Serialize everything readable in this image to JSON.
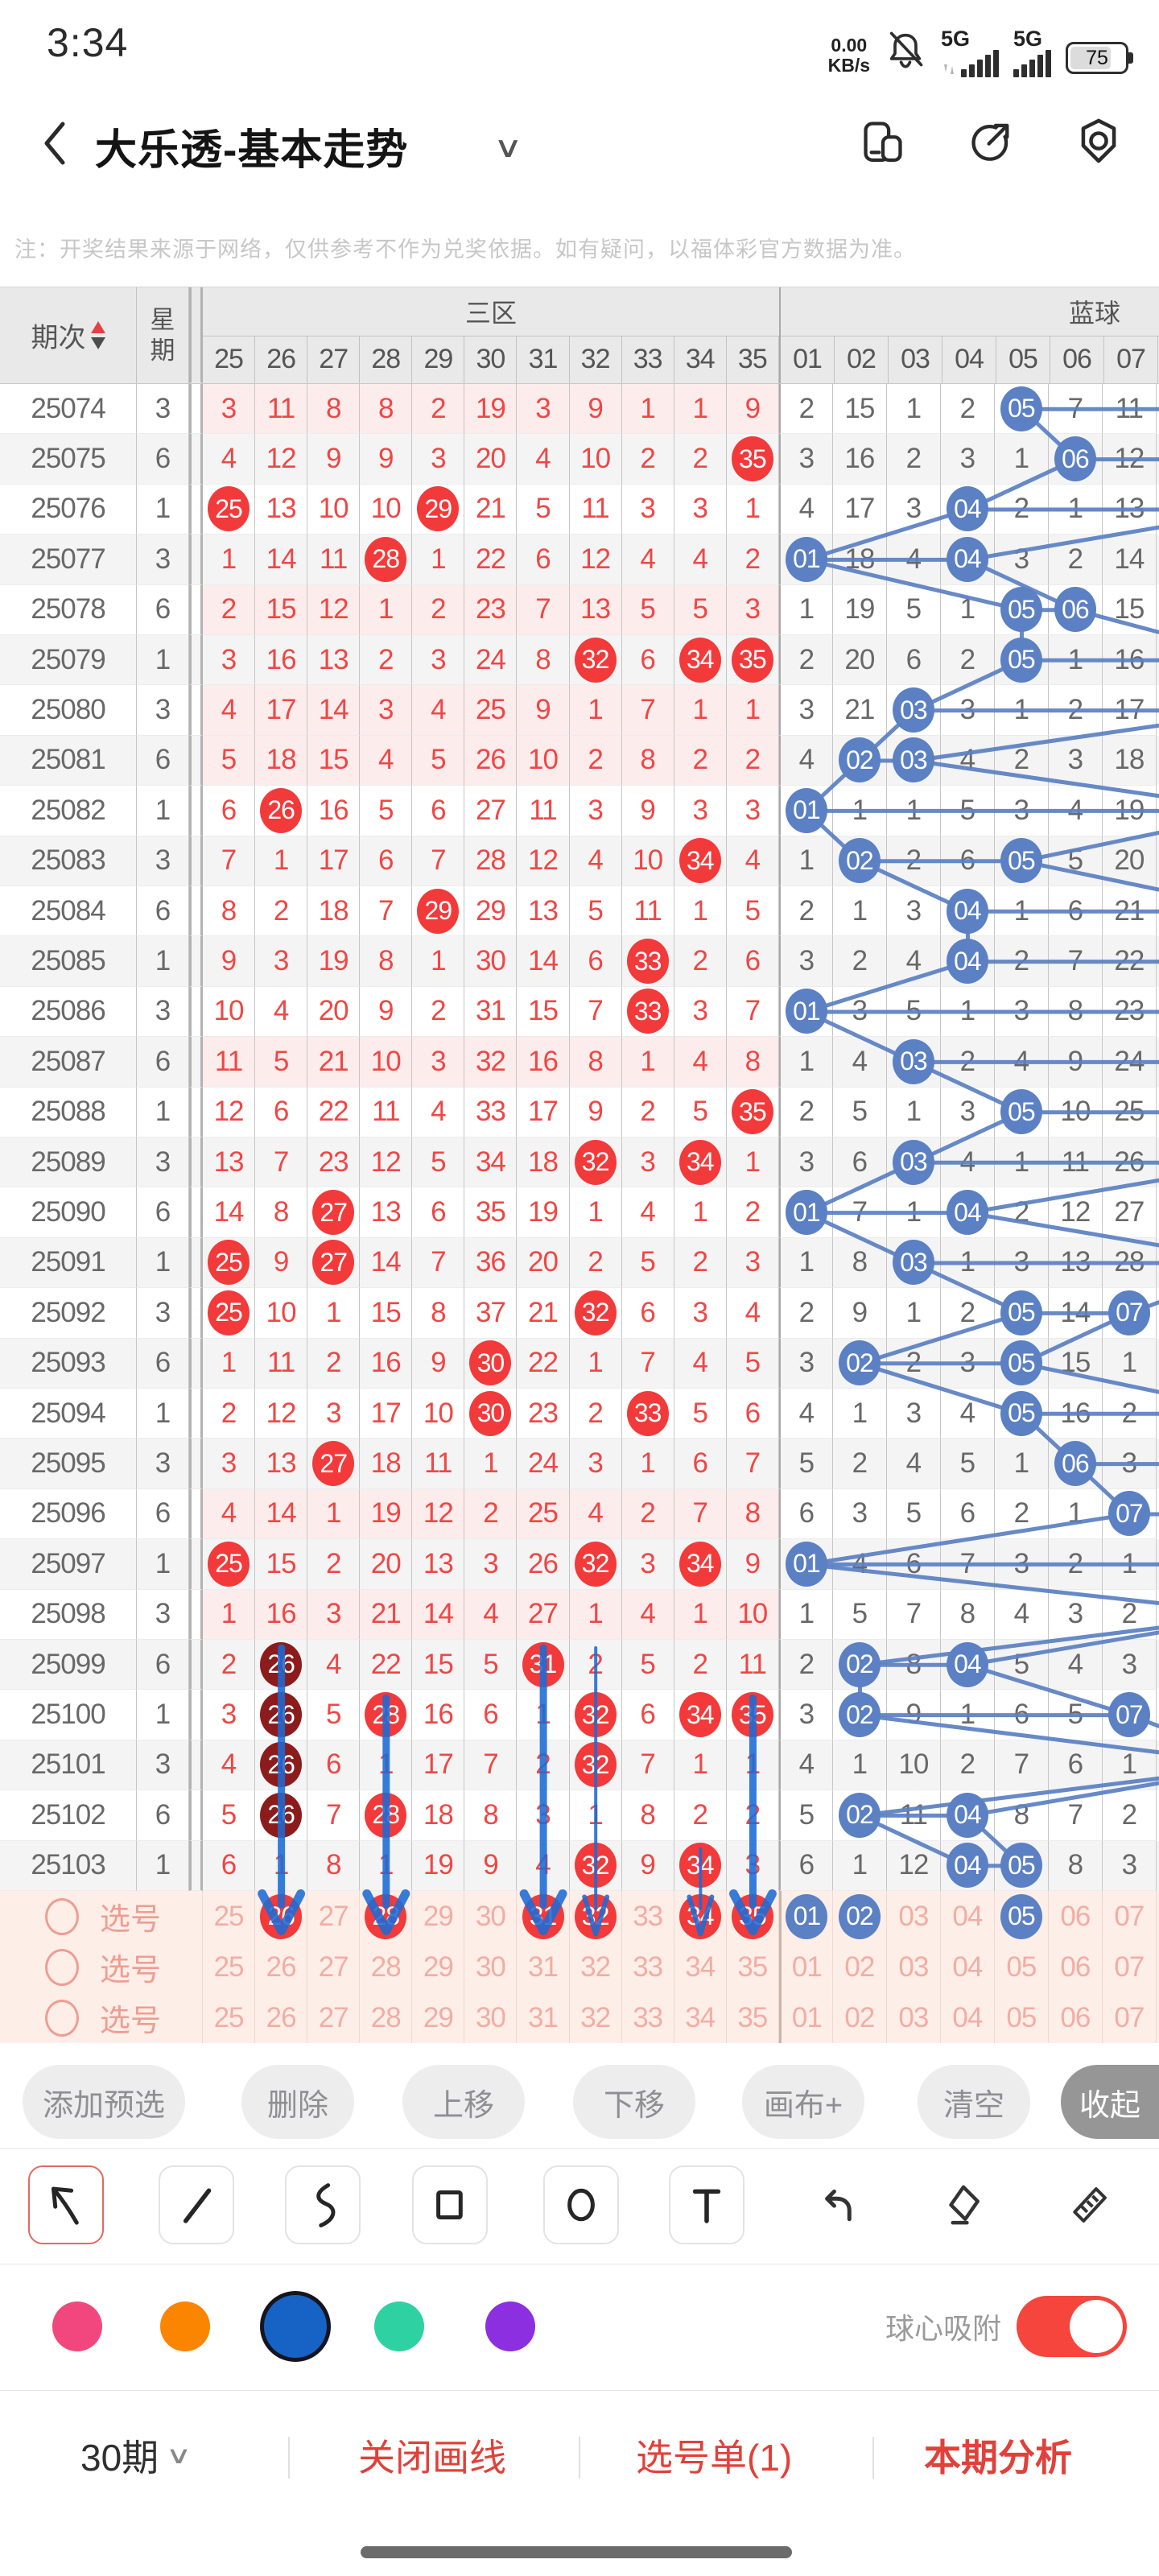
{
  "status_bar": {
    "time": "3:34",
    "net_speed_value": "0.00",
    "net_speed_unit": "KB/s",
    "signal1_label": "5G",
    "signal2_label": "5G",
    "battery_percent": "75",
    "icons": [
      "mute-bell-icon",
      "signal-bars-icon",
      "signal-bars-icon",
      "battery-icon"
    ]
  },
  "nav": {
    "title": "大乐透-基本走势",
    "icons": [
      "back-chevron-icon",
      "chevron-down-icon",
      "floating-window-icon",
      "share-icon",
      "privacy-shield-icon"
    ]
  },
  "notice": {
    "text": "注：开奖结果来源于网络，仅供参考不作为兑奖依据。如有疑问，以福体彩官方数据为准。"
  },
  "table": {
    "period_label": "期次",
    "week_chars": [
      "星",
      "期"
    ],
    "zone3_label": "三区",
    "blue_zone_label": "蓝球",
    "red_headers": [
      "25",
      "26",
      "27",
      "28",
      "29",
      "30",
      "31",
      "32",
      "33",
      "34",
      "35"
    ],
    "blue_headers": [
      "01",
      "02",
      "03",
      "04",
      "05",
      "06",
      "07"
    ],
    "rows": [
      {
        "p": "25074",
        "w": "3",
        "r": [
          "3",
          "11",
          "8",
          "8",
          "2",
          "19",
          "3",
          "9",
          "1",
          "1",
          "9"
        ],
        "b": [
          "2",
          "15",
          "1",
          "2",
          "05*",
          "7",
          "11"
        ]
      },
      {
        "p": "25075",
        "w": "6",
        "r": [
          "4",
          "12",
          "9",
          "9",
          "3",
          "20",
          "4",
          "10",
          "2",
          "2",
          "35*"
        ],
        "b": [
          "3",
          "16",
          "2",
          "3",
          "1",
          "06*",
          "12"
        ]
      },
      {
        "p": "25076",
        "w": "1",
        "r": [
          "25*",
          "13",
          "10",
          "10",
          "29*",
          "21",
          "5",
          "11",
          "3",
          "3",
          "1"
        ],
        "b": [
          "4",
          "17",
          "3",
          "04*",
          "2",
          "1",
          "13"
        ]
      },
      {
        "p": "25077",
        "w": "3",
        "r": [
          "1",
          "14",
          "11",
          "28*",
          "1",
          "22",
          "6",
          "12",
          "4",
          "4",
          "2"
        ],
        "b": [
          "01*",
          "18",
          "4",
          "04*",
          "3",
          "2",
          "14"
        ]
      },
      {
        "p": "25078",
        "w": "6",
        "r": [
          "2",
          "15",
          "12",
          "1",
          "2",
          "23",
          "7",
          "13",
          "5",
          "5",
          "3"
        ],
        "b": [
          "1",
          "19",
          "5",
          "1",
          "05*",
          "06*",
          "15"
        ]
      },
      {
        "p": "25079",
        "w": "1",
        "r": [
          "3",
          "16",
          "13",
          "2",
          "3",
          "24",
          "8",
          "32*",
          "6",
          "34*",
          "35*"
        ],
        "b": [
          "2",
          "20",
          "6",
          "2",
          "05*",
          "1",
          "16"
        ]
      },
      {
        "p": "25080",
        "w": "3",
        "r": [
          "4",
          "17",
          "14",
          "3",
          "4",
          "25",
          "9",
          "1",
          "7",
          "1",
          "1"
        ],
        "b": [
          "3",
          "21",
          "03*",
          "3",
          "1",
          "2",
          "17"
        ]
      },
      {
        "p": "25081",
        "w": "6",
        "r": [
          "5",
          "18",
          "15",
          "4",
          "5",
          "26",
          "10",
          "2",
          "8",
          "2",
          "2"
        ],
        "b": [
          "4",
          "02*",
          "03*",
          "4",
          "2",
          "3",
          "18"
        ]
      },
      {
        "p": "25082",
        "w": "1",
        "r": [
          "6",
          "26*",
          "16",
          "5",
          "6",
          "27",
          "11",
          "3",
          "9",
          "3",
          "3"
        ],
        "b": [
          "01*",
          "1",
          "1",
          "5",
          "3",
          "4",
          "19"
        ]
      },
      {
        "p": "25083",
        "w": "3",
        "r": [
          "7",
          "1",
          "17",
          "6",
          "7",
          "28",
          "12",
          "4",
          "10",
          "34*",
          "4"
        ],
        "b": [
          "1",
          "02*",
          "2",
          "6",
          "05*",
          "5",
          "20"
        ]
      },
      {
        "p": "25084",
        "w": "6",
        "r": [
          "8",
          "2",
          "18",
          "7",
          "29*",
          "29",
          "13",
          "5",
          "11",
          "1",
          "5"
        ],
        "b": [
          "2",
          "1",
          "3",
          "04*",
          "1",
          "6",
          "21"
        ]
      },
      {
        "p": "25085",
        "w": "1",
        "r": [
          "9",
          "3",
          "19",
          "8",
          "1",
          "30",
          "14",
          "6",
          "33*",
          "2",
          "6"
        ],
        "b": [
          "3",
          "2",
          "4",
          "04*",
          "2",
          "7",
          "22"
        ]
      },
      {
        "p": "25086",
        "w": "3",
        "r": [
          "10",
          "4",
          "20",
          "9",
          "2",
          "31",
          "15",
          "7",
          "33*",
          "3",
          "7"
        ],
        "b": [
          "01*",
          "3",
          "5",
          "1",
          "3",
          "8",
          "23"
        ]
      },
      {
        "p": "25087",
        "w": "6",
        "r": [
          "11",
          "5",
          "21",
          "10",
          "3",
          "32",
          "16",
          "8",
          "1",
          "4",
          "8"
        ],
        "b": [
          "1",
          "4",
          "03*",
          "2",
          "4",
          "9",
          "24"
        ]
      },
      {
        "p": "25088",
        "w": "1",
        "r": [
          "12",
          "6",
          "22",
          "11",
          "4",
          "33",
          "17",
          "9",
          "2",
          "5",
          "35*"
        ],
        "b": [
          "2",
          "5",
          "1",
          "3",
          "05*",
          "10",
          "25"
        ]
      },
      {
        "p": "25089",
        "w": "3",
        "r": [
          "13",
          "7",
          "23",
          "12",
          "5",
          "34",
          "18",
          "32*",
          "3",
          "34*",
          "1"
        ],
        "b": [
          "3",
          "6",
          "03*",
          "4",
          "1",
          "11",
          "26"
        ]
      },
      {
        "p": "25090",
        "w": "6",
        "r": [
          "14",
          "8",
          "27*",
          "13",
          "6",
          "35",
          "19",
          "1",
          "4",
          "1",
          "2"
        ],
        "b": [
          "01*",
          "7",
          "1",
          "04*",
          "2",
          "12",
          "27"
        ]
      },
      {
        "p": "25091",
        "w": "1",
        "r": [
          "25*",
          "9",
          "27*",
          "14",
          "7",
          "36",
          "20",
          "2",
          "5",
          "2",
          "3"
        ],
        "b": [
          "1",
          "8",
          "03*",
          "1",
          "3",
          "13",
          "28"
        ]
      },
      {
        "p": "25092",
        "w": "3",
        "r": [
          "25*",
          "10",
          "1",
          "15",
          "8",
          "37",
          "21",
          "32*",
          "6",
          "3",
          "4"
        ],
        "b": [
          "2",
          "9",
          "1",
          "2",
          "05*",
          "14",
          "07*"
        ]
      },
      {
        "p": "25093",
        "w": "6",
        "r": [
          "1",
          "11",
          "2",
          "16",
          "9",
          "30*",
          "22",
          "1",
          "7",
          "4",
          "5"
        ],
        "b": [
          "3",
          "02*",
          "2",
          "3",
          "05*",
          "15",
          "1"
        ]
      },
      {
        "p": "25094",
        "w": "1",
        "r": [
          "2",
          "12",
          "3",
          "17",
          "10",
          "30*",
          "23",
          "2",
          "33*",
          "5",
          "6"
        ],
        "b": [
          "4",
          "1",
          "3",
          "4",
          "05*",
          "16",
          "2"
        ]
      },
      {
        "p": "25095",
        "w": "3",
        "r": [
          "3",
          "13",
          "27*",
          "18",
          "11",
          "1",
          "24",
          "3",
          "1",
          "6",
          "7"
        ],
        "b": [
          "5",
          "2",
          "4",
          "5",
          "1",
          "06*",
          "3"
        ]
      },
      {
        "p": "25096",
        "w": "6",
        "r": [
          "4",
          "14",
          "1",
          "19",
          "12",
          "2",
          "25",
          "4",
          "2",
          "7",
          "8"
        ],
        "b": [
          "6",
          "3",
          "5",
          "6",
          "2",
          "1",
          "07*"
        ]
      },
      {
        "p": "25097",
        "w": "1",
        "r": [
          "25*",
          "15",
          "2",
          "20",
          "13",
          "3",
          "26",
          "32*",
          "3",
          "34*",
          "9"
        ],
        "b": [
          "01*",
          "4",
          "6",
          "7",
          "3",
          "2",
          "1"
        ]
      },
      {
        "p": "25098",
        "w": "3",
        "r": [
          "1",
          "16",
          "3",
          "21",
          "14",
          "4",
          "27",
          "1",
          "4",
          "1",
          "10"
        ],
        "b": [
          "1",
          "5",
          "7",
          "8",
          "4",
          "3",
          "2"
        ]
      },
      {
        "p": "25099",
        "w": "6",
        "r": [
          "2",
          "26**",
          "4",
          "22",
          "15",
          "5",
          "31*",
          "2",
          "5",
          "2",
          "11"
        ],
        "b": [
          "2",
          "02*",
          "8",
          "04*",
          "5",
          "4",
          "3"
        ]
      },
      {
        "p": "25100",
        "w": "1",
        "r": [
          "3",
          "26**",
          "5",
          "28*",
          "16",
          "6",
          "1",
          "32*",
          "6",
          "34*",
          "35*"
        ],
        "b": [
          "3",
          "02*",
          "9",
          "1",
          "6",
          "5",
          "07*"
        ]
      },
      {
        "p": "25101",
        "w": "3",
        "r": [
          "4",
          "26**",
          "6",
          "1",
          "17",
          "7",
          "2",
          "32*",
          "7",
          "1",
          "1"
        ],
        "b": [
          "4",
          "1",
          "10",
          "2",
          "7",
          "6",
          "1"
        ]
      },
      {
        "p": "25102",
        "w": "6",
        "r": [
          "5",
          "26**",
          "7",
          "28*",
          "18",
          "8",
          "3",
          "1",
          "8",
          "2",
          "2"
        ],
        "b": [
          "5",
          "02*",
          "11",
          "04*",
          "8",
          "7",
          "2"
        ]
      },
      {
        "p": "25103",
        "w": "1",
        "r": [
          "6",
          "1",
          "8",
          "1",
          "19",
          "9",
          "4",
          "32*",
          "9",
          "34*",
          "3"
        ],
        "b": [
          "6",
          "1",
          "12",
          "04*",
          "05*",
          "8",
          "3"
        ]
      }
    ],
    "select_rows": [
      {
        "label": "选号",
        "r": [
          "25",
          "26*",
          "27",
          "28*",
          "29",
          "30",
          "31*",
          "32*",
          "33",
          "34*",
          "35*"
        ],
        "b": [
          "01*",
          "02*",
          "03",
          "04",
          "05*",
          "06",
          "07"
        ]
      },
      {
        "label": "选号",
        "r": [
          "25",
          "26",
          "27",
          "28",
          "29",
          "30",
          "31",
          "32",
          "33",
          "34",
          "35"
        ],
        "b": [
          "01",
          "02",
          "03",
          "04",
          "05",
          "06",
          "07"
        ]
      },
      {
        "label": "选号",
        "r": [
          "25",
          "26",
          "27",
          "28",
          "29",
          "30",
          "31",
          "32",
          "33",
          "34",
          "35"
        ],
        "b": [
          "01",
          "02",
          "03",
          "04",
          "05",
          "06",
          "07"
        ]
      }
    ],
    "drawn_arrows": [
      {
        "col": "26",
        "from": "25099",
        "thin": false
      },
      {
        "col": "28",
        "from": "25100",
        "thin": false
      },
      {
        "col": "31",
        "from": "25099",
        "thin": false
      },
      {
        "col": "32",
        "from": "25099",
        "thin": true
      },
      {
        "col": "34",
        "from": "25103",
        "thin": true
      },
      {
        "col": "35",
        "from": "25100",
        "thin": false
      }
    ],
    "colors": {
      "red_ball": "#f23a3a",
      "dark_ball": "#8c1c1c",
      "blue_ball": "#5b80c3",
      "trend_line": "#5b80c3",
      "arrow": "#1b6bd6",
      "pink_band": "#fdecec",
      "select_bg": "#fdeee8"
    }
  },
  "toolbar": {
    "buttons": [
      {
        "label": "添加预选",
        "active": false
      },
      {
        "label": "删除",
        "active": false
      },
      {
        "label": "上移",
        "active": false
      },
      {
        "label": "下移",
        "active": false
      },
      {
        "label": "画布+",
        "active": false
      },
      {
        "label": "清空",
        "active": false
      },
      {
        "label": "收起",
        "active": true
      }
    ]
  },
  "draw_tools": {
    "tools": [
      "arrow-tool",
      "line-tool",
      "curve-tool",
      "rect-tool",
      "ellipse-tool",
      "text-tool",
      "undo",
      "eraser",
      "ruler"
    ],
    "selected": "arrow-tool"
  },
  "palette": {
    "colors": [
      {
        "name": "pink",
        "hex": "#F2477E"
      },
      {
        "name": "orange",
        "hex": "#FB8500"
      },
      {
        "name": "blue",
        "hex": "#1663C5"
      },
      {
        "name": "green",
        "hex": "#2ED1A2"
      },
      {
        "name": "purple",
        "hex": "#8B2FE0"
      }
    ],
    "selected": "blue",
    "snap_label": "球心吸附",
    "snap_on": true
  },
  "bottom_bar": {
    "period_select": "30期",
    "close_lines": "关闭画线",
    "ticket": "选号单(1)",
    "analysis": "本期分析"
  }
}
